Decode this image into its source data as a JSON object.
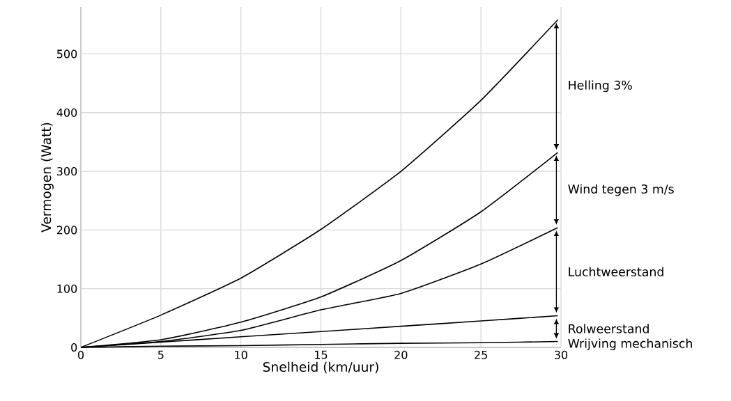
{
  "chart_data": {
    "type": "line",
    "xlabel": "Snelheid (km/uur)",
    "ylabel": "Vermogen (Watt)",
    "x": [
      0,
      5,
      10,
      15,
      20,
      25,
      29.8
    ],
    "series": [
      {
        "color": "#000000",
        "values": [
          0,
          2,
          3,
          5,
          7,
          8,
          10
        ]
      },
      {
        "color": "#000000",
        "values": [
          0,
          9,
          18,
          27,
          36,
          45,
          54
        ]
      },
      {
        "color": "#000000",
        "values": [
          0,
          10,
          29,
          64,
          92,
          142,
          204
        ]
      },
      {
        "color": "#000000",
        "values": [
          0,
          13,
          43,
          86,
          148,
          231,
          332
        ]
      },
      {
        "color": "#000000",
        "values": [
          0,
          55,
          118,
          201,
          300,
          421,
          558
        ]
      }
    ],
    "xlim": [
      0,
      30
    ],
    "ylim": [
      0,
      580
    ],
    "xticks": [
      0,
      5,
      10,
      15,
      20,
      25,
      30
    ],
    "yticks": [
      0,
      100,
      200,
      300,
      400,
      500
    ],
    "grid": true,
    "marker": "none",
    "line_style": "solid",
    "annotations": [
      "Wrijving mechanisch",
      "Rolweerstand",
      "Luchtweerstand",
      "Wind tegen 3 m/s",
      "Helling 3%"
    ]
  }
}
